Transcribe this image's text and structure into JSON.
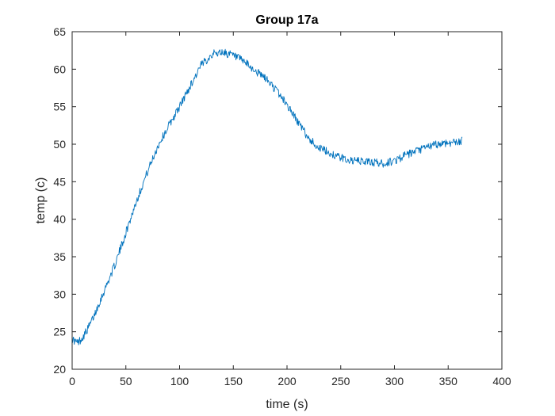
{
  "chart_data": {
    "type": "line",
    "title": "Group 17a",
    "xlabel": "time (s)",
    "ylabel": "temp (c)",
    "xlim": [
      0,
      400
    ],
    "ylim": [
      20,
      65
    ],
    "xticks": [
      0,
      50,
      100,
      150,
      200,
      250,
      300,
      350,
      400
    ],
    "yticks": [
      20,
      25,
      30,
      35,
      40,
      45,
      50,
      55,
      60,
      65
    ],
    "grid": false,
    "line_color": "#0072BD",
    "series": [
      {
        "x": [
          0,
          5,
          10,
          15,
          20,
          25,
          30,
          40,
          50,
          60,
          70,
          80,
          90,
          100,
          110,
          120,
          130,
          140,
          150,
          160,
          170,
          180,
          190,
          200,
          210,
          220,
          230,
          240,
          250,
          260,
          270,
          280,
          290,
          300,
          310,
          320,
          330,
          340,
          350,
          360,
          363
        ],
        "values": [
          24.0,
          23.5,
          24.3,
          25.5,
          27.0,
          28.8,
          30.5,
          34.0,
          38.2,
          42.5,
          46.3,
          49.8,
          52.5,
          55.0,
          57.8,
          60.5,
          62.0,
          62.3,
          61.8,
          61.0,
          59.8,
          58.8,
          57.2,
          55.3,
          53.0,
          50.8,
          49.5,
          48.8,
          48.2,
          47.8,
          47.7,
          47.6,
          47.4,
          47.8,
          48.5,
          49.0,
          49.6,
          50.0,
          50.2,
          50.3,
          50.5
        ]
      }
    ]
  }
}
